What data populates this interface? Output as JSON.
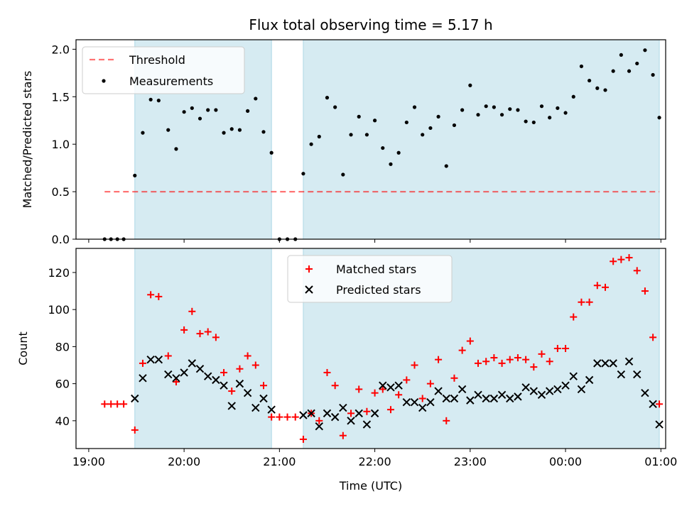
{
  "figure_title": "Flux total observing time = 5.17 h",
  "xlabel": "Time (UTC)",
  "x_ticks": [
    "19:00",
    "20:00",
    "21:00",
    "22:00",
    "23:00",
    "00:00",
    "01:00"
  ],
  "colors": {
    "band": "#add8e6",
    "threshold": "#ff0000",
    "measurements": "#000000",
    "matched": "#ff0000",
    "predicted": "#000000"
  },
  "chart_data": [
    {
      "type": "scatter",
      "ylabel": "Matched/Predicted stars",
      "xlim": [
        "18:52",
        "01:03"
      ],
      "ylim": [
        0,
        2.1
      ],
      "y_ticks": [
        "0.0",
        "0.5",
        "1.0",
        "1.5",
        "2.0"
      ],
      "legend": {
        "placement": "upper-left",
        "entries": [
          "Threshold",
          "Measurements"
        ]
      },
      "shaded_intervals": [
        [
          "19:29",
          "20:55"
        ],
        [
          "21:15",
          "00:59"
        ]
      ],
      "threshold": {
        "name": "Threshold",
        "value": 0.5,
        "x_range": [
          "19:10",
          "00:59"
        ],
        "style": "dashed"
      },
      "series": [
        {
          "name": "Measurements",
          "marker": "dot",
          "x": [
            "19:10",
            "19:14",
            "19:18",
            "19:22",
            "19:29",
            "19:34",
            "19:39",
            "19:44",
            "19:50",
            "19:55",
            "20:00",
            "20:05",
            "20:10",
            "20:15",
            "20:20",
            "20:25",
            "20:30",
            "20:35",
            "20:40",
            "20:45",
            "20:50",
            "20:55",
            "21:00",
            "21:05",
            "21:10",
            "21:15",
            "21:20",
            "21:25",
            "21:30",
            "21:35",
            "21:40",
            "21:45",
            "21:50",
            "21:55",
            "22:00",
            "22:05",
            "22:10",
            "22:15",
            "22:20",
            "22:25",
            "22:30",
            "22:35",
            "22:40",
            "22:45",
            "22:50",
            "22:55",
            "23:00",
            "23:05",
            "23:10",
            "23:15",
            "23:20",
            "23:25",
            "23:30",
            "23:35",
            "23:40",
            "23:45",
            "23:50",
            "23:55",
            "00:00",
            "00:05",
            "00:10",
            "00:15",
            "00:20",
            "00:25",
            "00:30",
            "00:35",
            "00:40",
            "00:45",
            "00:50",
            "00:55",
            "00:59"
          ],
          "y": [
            0,
            0,
            0,
            0,
            0.67,
            1.12,
            1.47,
            1.46,
            1.15,
            0.95,
            1.34,
            1.38,
            1.27,
            1.36,
            1.36,
            1.12,
            1.16,
            1.15,
            1.35,
            1.48,
            1.13,
            0.91,
            0,
            0,
            0,
            0.69,
            1.0,
            1.08,
            1.49,
            1.39,
            0.68,
            1.1,
            1.29,
            1.1,
            1.25,
            0.96,
            0.79,
            0.91,
            1.23,
            1.39,
            1.1,
            1.17,
            1.29,
            0.77,
            1.2,
            1.36,
            1.62,
            1.31,
            1.4,
            1.39,
            1.31,
            1.37,
            1.36,
            1.24,
            1.23,
            1.4,
            1.28,
            1.38,
            1.33,
            1.5,
            1.82,
            1.67,
            1.59,
            1.57,
            1.77,
            1.94,
            1.77,
            1.85,
            1.99,
            1.73,
            1.28
          ]
        }
      ]
    },
    {
      "type": "scatter",
      "ylabel": "Count",
      "xlim": [
        "18:52",
        "01:03"
      ],
      "ylim": [
        25,
        133
      ],
      "y_ticks": [
        "40",
        "60",
        "80",
        "100",
        "120"
      ],
      "legend": {
        "placement": "upper-center",
        "entries": [
          "Matched stars",
          "Predicted stars"
        ]
      },
      "shaded_intervals": [
        [
          "19:29",
          "20:55"
        ],
        [
          "21:15",
          "00:59"
        ]
      ],
      "series": [
        {
          "name": "Matched stars",
          "marker": "plus",
          "x": [
            "19:10",
            "19:14",
            "19:18",
            "19:22",
            "19:29",
            "19:34",
            "19:39",
            "19:44",
            "19:50",
            "19:55",
            "20:00",
            "20:05",
            "20:10",
            "20:15",
            "20:20",
            "20:25",
            "20:30",
            "20:35",
            "20:40",
            "20:45",
            "20:50",
            "20:55",
            "21:00",
            "21:05",
            "21:10",
            "21:15",
            "21:20",
            "21:25",
            "21:30",
            "21:35",
            "21:40",
            "21:45",
            "21:50",
            "21:55",
            "22:00",
            "22:05",
            "22:10",
            "22:15",
            "22:20",
            "22:25",
            "22:30",
            "22:35",
            "22:40",
            "22:45",
            "22:50",
            "22:55",
            "23:00",
            "23:05",
            "23:10",
            "23:15",
            "23:20",
            "23:25",
            "23:30",
            "23:35",
            "23:40",
            "23:45",
            "23:50",
            "23:55",
            "00:00",
            "00:05",
            "00:10",
            "00:15",
            "00:20",
            "00:25",
            "00:30",
            "00:35",
            "00:40",
            "00:45",
            "00:50",
            "00:55",
            "00:59"
          ],
          "y": [
            49,
            49,
            49,
            49,
            35,
            71,
            108,
            107,
            75,
            61,
            89,
            99,
            87,
            88,
            85,
            66,
            56,
            68,
            75,
            70,
            59,
            42,
            42,
            42,
            42,
            30,
            44,
            40,
            66,
            59,
            32,
            44,
            57,
            45,
            55,
            57,
            46,
            54,
            62,
            70,
            52,
            60,
            73,
            40,
            63,
            78,
            83,
            71,
            72,
            74,
            71,
            73,
            74,
            73,
            69,
            76,
            72,
            79,
            79,
            96,
            104,
            104,
            113,
            112,
            126,
            127,
            128,
            121,
            110,
            85,
            49
          ]
        },
        {
          "name": "Predicted stars",
          "marker": "x",
          "x": [
            "19:29",
            "19:34",
            "19:39",
            "19:44",
            "19:50",
            "19:55",
            "20:00",
            "20:05",
            "20:10",
            "20:15",
            "20:20",
            "20:25",
            "20:30",
            "20:35",
            "20:40",
            "20:45",
            "20:50",
            "20:55",
            "21:15",
            "21:20",
            "21:25",
            "21:30",
            "21:35",
            "21:40",
            "21:45",
            "21:50",
            "21:55",
            "22:00",
            "22:05",
            "22:10",
            "22:15",
            "22:20",
            "22:25",
            "22:30",
            "22:35",
            "22:40",
            "22:45",
            "22:50",
            "22:55",
            "23:00",
            "23:05",
            "23:10",
            "23:15",
            "23:20",
            "23:25",
            "23:30",
            "23:35",
            "23:40",
            "23:45",
            "23:50",
            "23:55",
            "00:00",
            "00:05",
            "00:10",
            "00:15",
            "00:20",
            "00:25",
            "00:30",
            "00:35",
            "00:40",
            "00:45",
            "00:50",
            "00:55",
            "00:59"
          ],
          "y": [
            52,
            63,
            73,
            73,
            65,
            63,
            66,
            71,
            68,
            64,
            62,
            59,
            48,
            60,
            55,
            47,
            52,
            46,
            43,
            44,
            37,
            44,
            42,
            47,
            40,
            44,
            38,
            44,
            59,
            58,
            59,
            50,
            50,
            47,
            50,
            56,
            52,
            52,
            57,
            51,
            54,
            52,
            52,
            54,
            52,
            53,
            58,
            56,
            54,
            56,
            57,
            59,
            64,
            57,
            62,
            71,
            71,
            71,
            65,
            72,
            65,
            55,
            49,
            38
          ]
        }
      ]
    }
  ]
}
